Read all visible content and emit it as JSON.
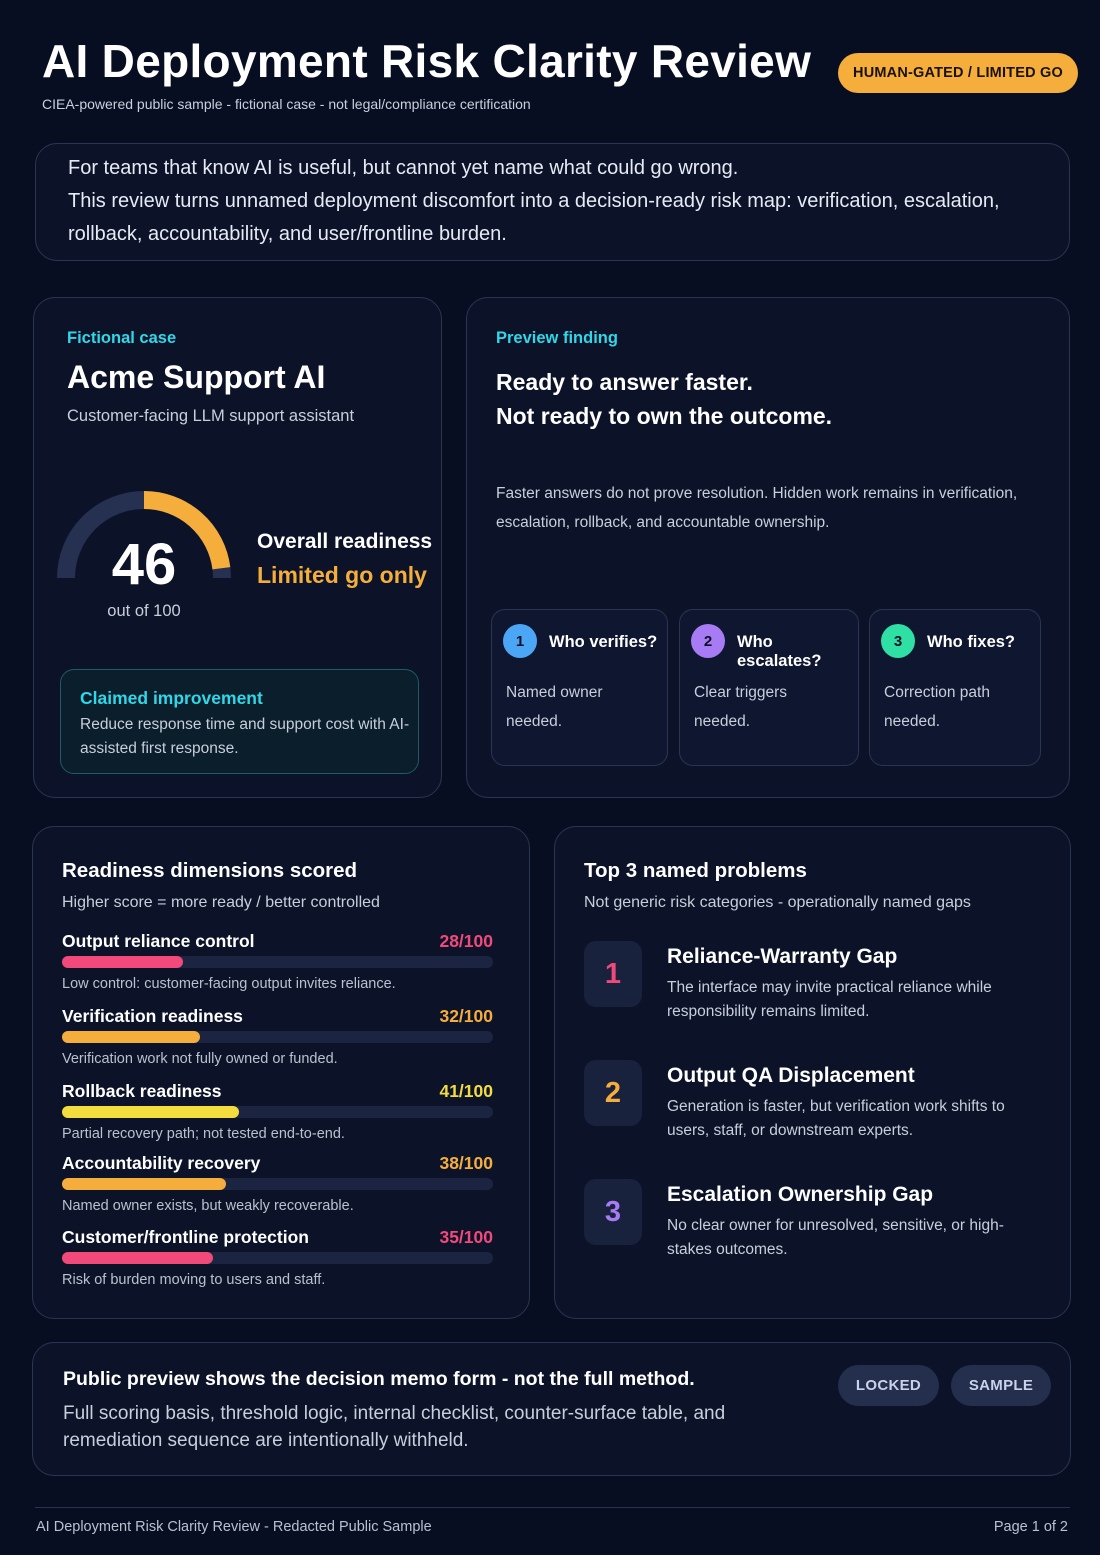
{
  "header": {
    "title": "AI Deployment Risk Clarity Review",
    "subtitle": "CIEA-powered public sample - fictional case - not legal/compliance certification",
    "status": "HUMAN-GATED / LIMITED GO"
  },
  "intro": {
    "line1": "For teams that know AI is useful, but cannot yet name what could go wrong.",
    "line2": "This review turns unnamed deployment discomfort into a decision-ready risk map: verification, escalation, rollback, accountability, and user/frontline burden."
  },
  "case": {
    "eyebrow": "Fictional case",
    "name": "Acme Support AI",
    "description": "Customer-facing LLM support assistant",
    "score": "46",
    "score_value": 46,
    "score_max": 100,
    "score_out_of": "out of 100",
    "readiness_label": "Overall readiness",
    "readiness_value": "Limited go only",
    "claim_title": "Claimed improvement",
    "claim_text": "Reduce response time and support cost with AI-assisted first response."
  },
  "preview": {
    "eyebrow": "Preview finding",
    "headline1": "Ready to answer faster.",
    "headline2": "Not ready to own the outcome.",
    "text": "Faster answers do not prove resolution. Hidden work remains in verification, escalation, rollback, and accountable ownership.",
    "questions": [
      {
        "num": "1",
        "title": "Who verifies?",
        "text": "Named owner needed.",
        "color": "#4ba7f5"
      },
      {
        "num": "2",
        "title": "Who escalates?",
        "text": "Clear triggers needed.",
        "color": "#a77bf3"
      },
      {
        "num": "3",
        "title": "Who fixes?",
        "text": "Correction path needed.",
        "color": "#2ee0a4"
      }
    ]
  },
  "dimensions": {
    "title": "Readiness dimensions scored",
    "subtitle": "Higher score = more ready / better controlled",
    "items": [
      {
        "name": "Output reliance control",
        "score_label": "28/100",
        "score": 28,
        "note": "Low control: customer-facing output invites reliance.",
        "color": "#f0497a"
      },
      {
        "name": "Verification readiness",
        "score_label": "32/100",
        "score": 32,
        "note": "Verification work not fully owned or funded.",
        "color": "#f5ad3c"
      },
      {
        "name": "Rollback readiness",
        "score_label": "41/100",
        "score": 41,
        "note": "Partial recovery path; not tested end-to-end.",
        "color": "#f3dd3e"
      },
      {
        "name": "Accountability recovery",
        "score_label": "38/100",
        "score": 38,
        "note": "Named owner exists, but weakly recoverable.",
        "color": "#f5ad3c"
      },
      {
        "name": "Customer/frontline protection",
        "score_label": "35/100",
        "score": 35,
        "note": "Risk of burden moving to users and staff.",
        "color": "#f0497a"
      }
    ]
  },
  "problems": {
    "title": "Top 3 named problems",
    "subtitle": "Not generic risk categories - operationally named gaps",
    "items": [
      {
        "num": "1",
        "title": "Reliance-Warranty Gap",
        "text": "The interface may invite practical reliance while responsibility remains limited.",
        "color": "#f0497a"
      },
      {
        "num": "2",
        "title": "Output QA Displacement",
        "text": "Generation is faster, but verification work shifts to users, staff, or downstream experts.",
        "color": "#f5ad3c"
      },
      {
        "num": "3",
        "title": "Escalation Ownership Gap",
        "text": "No clear owner for unresolved, sensitive, or high-stakes outcomes.",
        "color": "#a77bf3"
      }
    ]
  },
  "locked": {
    "title": "Public preview shows the decision memo form - not the full method.",
    "text": "Full scoring basis, threshold logic, internal checklist, counter-surface table, and remediation sequence are intentionally withheld.",
    "pill1": "LOCKED",
    "pill2": "SAMPLE"
  },
  "footer": {
    "left": "AI Deployment Risk Clarity Review - Redacted Public Sample",
    "right": "Page 1 of 2"
  },
  "colors": {
    "background": "#080e22",
    "accent_cyan": "#2fd8e8",
    "accent_amber": "#f5ad3c",
    "gauge_track": "#263050"
  }
}
